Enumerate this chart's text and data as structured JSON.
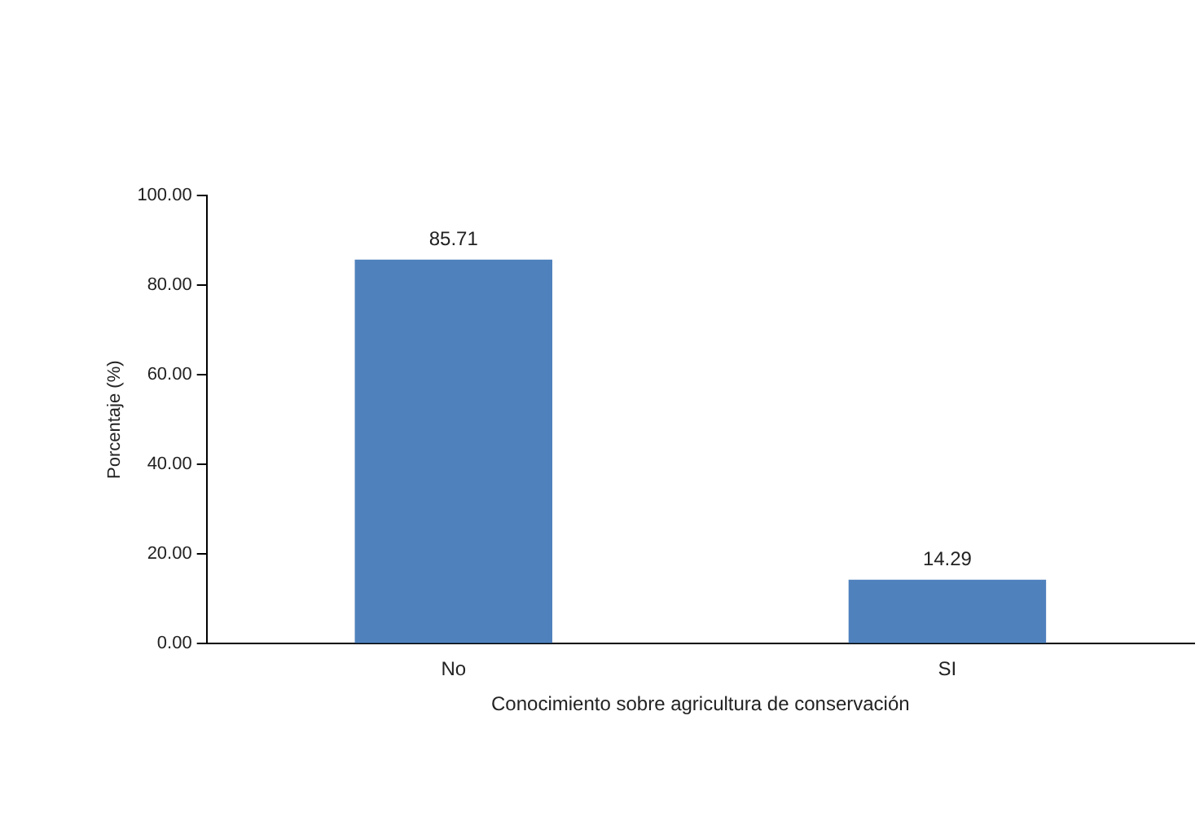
{
  "chart_data": {
    "type": "bar",
    "xlabel": "Conocimiento sobre agricultura de conservación",
    "ylabel": "Porcentaje (%)",
    "categories": [
      "No",
      "SI"
    ],
    "values": [
      85.71,
      14.29
    ],
    "color": "#4f81bd",
    "ylim": [
      0,
      100
    ],
    "yticks": [
      {
        "value": 0,
        "label": "0.00"
      },
      {
        "value": 20,
        "label": "20.00"
      },
      {
        "value": 40,
        "label": "40.00"
      },
      {
        "value": 60,
        "label": "60.00"
      },
      {
        "value": 80,
        "label": "80.00"
      },
      {
        "value": 100,
        "label": "100.00"
      }
    ],
    "grid": false,
    "legend": false,
    "data_labels": true
  }
}
